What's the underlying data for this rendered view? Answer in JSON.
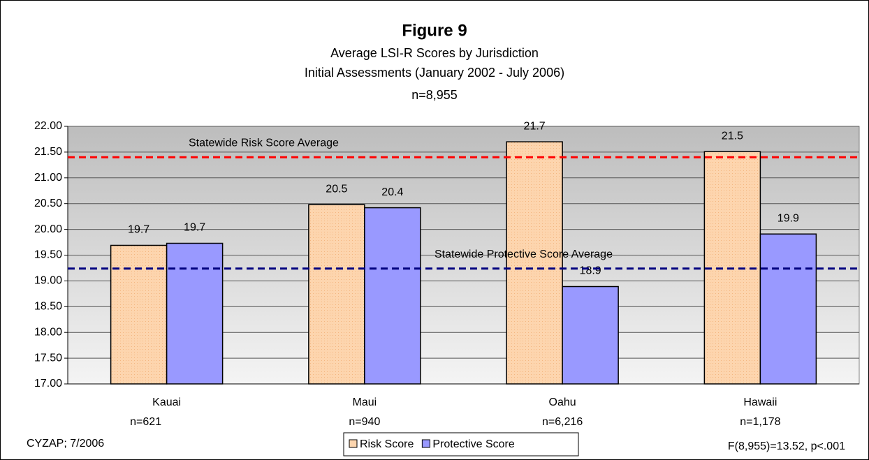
{
  "chart_data": {
    "type": "bar",
    "title": "Figure 9",
    "subtitle": [
      "Average LSI-R Scores by Jurisdiction",
      "Initial Assessments (January 2002 - July 2006)",
      "n=8,955"
    ],
    "categories": [
      "Kauai",
      "Maui",
      "Oahu",
      "Hawaii"
    ],
    "category_notes": [
      "n=621",
      "n=940",
      "n=6,216",
      "n=1,178"
    ],
    "series": [
      {
        "name": "Risk Score",
        "color": "#fdd5ae",
        "values": [
          19.69,
          20.48,
          21.7,
          21.51
        ],
        "value_labels": [
          "19.7",
          "20.5",
          "21.7",
          "21.5"
        ]
      },
      {
        "name": "Protective Score",
        "color": "#9999ff",
        "values": [
          19.73,
          20.42,
          18.89,
          19.91
        ],
        "value_labels": [
          "19.7",
          "20.4",
          "18.9",
          "19.9"
        ]
      }
    ],
    "reference_lines": [
      {
        "label": "Statewide Risk Score Average",
        "value": 21.4,
        "color": "#ff0000"
      },
      {
        "label": "Statewide Protective Score Average",
        "value": 19.24,
        "color": "#000080"
      }
    ],
    "ylim": [
      17,
      22
    ],
    "yticks": [
      {
        "value": 17,
        "label": "17.00"
      },
      {
        "value": 17.5,
        "label": "17.50"
      },
      {
        "value": 18,
        "label": "18.00"
      },
      {
        "value": 18.5,
        "label": "18.50"
      },
      {
        "value": 19,
        "label": "19.00"
      },
      {
        "value": 19.5,
        "label": "19.50"
      },
      {
        "value": 20,
        "label": "20.00"
      },
      {
        "value": 20.5,
        "label": "20.50"
      },
      {
        "value": 21,
        "label": "21.00"
      },
      {
        "value": 21.5,
        "label": "21.50"
      },
      {
        "value": 22,
        "label": "22.00"
      }
    ],
    "grid": true,
    "legend": "bottom",
    "footnotes": [
      "CYZAP; 7/2006",
      "F(8,955)=13.52, p<.001"
    ]
  }
}
